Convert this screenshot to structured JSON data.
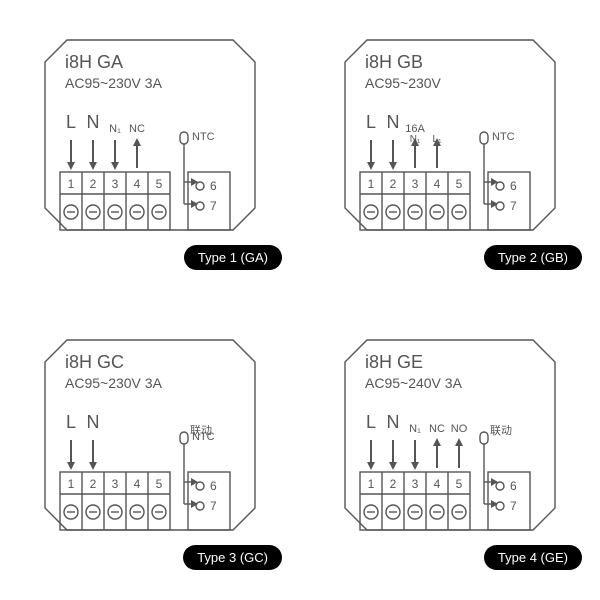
{
  "colors": {
    "line": "#555555",
    "bg": "#ffffff",
    "badge_bg": "#000000",
    "badge_text": "#ffffff"
  },
  "stroke_width": 1.4,
  "modules": [
    {
      "key": "ga",
      "title_line1": "i8H  GA",
      "title_line2": "AC95~230V 3A",
      "badge": "Type 1 (GA)",
      "terminals": [
        "1",
        "2",
        "3",
        "4",
        "5"
      ],
      "o6": "6",
      "o7": "7",
      "columns": [
        {
          "top": "L",
          "arrow": "down"
        },
        {
          "top": "N",
          "arrow": "down"
        },
        {
          "top": "N₁",
          "top_small": true,
          "arrow": "down"
        },
        {
          "top": "NC",
          "top_small": true,
          "arrow": "up"
        },
        {
          "top": "",
          "arrow": "none"
        }
      ],
      "ntc_label": "NTC",
      "linkage_label": ""
    },
    {
      "key": "gb",
      "title_line1": "i8H  GB",
      "title_line2": "AC95~230V",
      "badge": "Type 2 (GB)",
      "terminals": [
        "1",
        "2",
        "3",
        "4",
        "5"
      ],
      "o6": "6",
      "o7": "7",
      "columns": [
        {
          "top": "L",
          "arrow": "down"
        },
        {
          "top": "N",
          "arrow": "down"
        },
        {
          "top": "16A",
          "top_small": true,
          "arrow": "up",
          "sub": "N₁"
        },
        {
          "top": "",
          "sub": "L₁",
          "arrow": "up"
        },
        {
          "top": "",
          "arrow": "none"
        }
      ],
      "ntc_label": "NTC",
      "linkage_label": ""
    },
    {
      "key": "gc",
      "title_line1": "i8H  GC",
      "title_line2": "AC95~230V  3A",
      "badge": "Type 3 (GC)",
      "terminals": [
        "1",
        "2",
        "3",
        "4",
        "5"
      ],
      "o6": "6",
      "o7": "7",
      "columns": [
        {
          "top": "L",
          "arrow": "down"
        },
        {
          "top": "N",
          "arrow": "down"
        },
        {
          "top": "",
          "arrow": "none"
        },
        {
          "top": "",
          "arrow": "none"
        },
        {
          "top": "",
          "arrow": "none"
        }
      ],
      "ntc_label": "NTC",
      "linkage_label": "联动"
    },
    {
      "key": "ge",
      "title_line1": "i8H  GE",
      "title_line2": "AC95~240V 3A",
      "badge": "Type 4 (GE)",
      "terminals": [
        "1",
        "2",
        "3",
        "4",
        "5"
      ],
      "o6": "6",
      "o7": "7",
      "columns": [
        {
          "top": "L",
          "arrow": "down"
        },
        {
          "top": "N",
          "arrow": "down"
        },
        {
          "top": "N₁",
          "top_small": true,
          "arrow": "down"
        },
        {
          "top": "NC",
          "top_small": true,
          "arrow": "up"
        },
        {
          "top": "NO",
          "top_small": true,
          "arrow": "up"
        }
      ],
      "ntc_label": "",
      "linkage_label": "联动"
    }
  ]
}
